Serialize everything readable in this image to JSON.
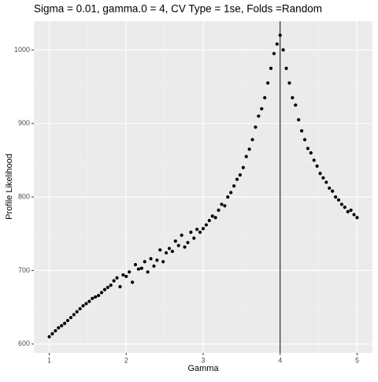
{
  "chart_data": {
    "type": "scatter",
    "title": "Sigma = 0.01, gamma.0 = 4, CV Type = 1se, Folds =Random",
    "x_label": "Gamma",
    "y_label": "Profile Likelihood",
    "xlim": [
      0.8,
      5.2
    ],
    "ylim": [
      588,
      1039
    ],
    "xticks": [
      1,
      2,
      3,
      4,
      5
    ],
    "yticks": [
      600,
      700,
      800,
      900,
      1000
    ],
    "grid": true,
    "color": "#000000",
    "vline": 4,
    "x": [
      1.0,
      1.04,
      1.08,
      1.12,
      1.16,
      1.2,
      1.24,
      1.28,
      1.32,
      1.36,
      1.4,
      1.44,
      1.48,
      1.52,
      1.56,
      1.6,
      1.64,
      1.68,
      1.72,
      1.76,
      1.8,
      1.84,
      1.88,
      1.92,
      1.96,
      2.0,
      2.04,
      2.08,
      2.12,
      2.16,
      2.2,
      2.24,
      2.28,
      2.32,
      2.36,
      2.4,
      2.44,
      2.48,
      2.52,
      2.56,
      2.6,
      2.64,
      2.68,
      2.72,
      2.76,
      2.8,
      2.84,
      2.88,
      2.92,
      2.96,
      3.0,
      3.04,
      3.08,
      3.12,
      3.16,
      3.2,
      3.24,
      3.28,
      3.32,
      3.36,
      3.4,
      3.44,
      3.48,
      3.52,
      3.56,
      3.6,
      3.64,
      3.68,
      3.72,
      3.76,
      3.8,
      3.84,
      3.88,
      3.92,
      3.96,
      4.0,
      4.04,
      4.08,
      4.12,
      4.16,
      4.2,
      4.24,
      4.28,
      4.32,
      4.36,
      4.4,
      4.44,
      4.48,
      4.52,
      4.56,
      4.6,
      4.64,
      4.68,
      4.72,
      4.76,
      4.8,
      4.84,
      4.88,
      4.92,
      4.96,
      5.0
    ],
    "values": [
      610,
      614,
      618,
      622,
      625,
      628,
      632,
      636,
      640,
      644,
      648,
      652,
      655,
      658,
      662,
      664,
      666,
      670,
      674,
      677,
      680,
      686,
      690,
      678,
      694,
      692,
      698,
      684,
      708,
      702,
      703,
      712,
      698,
      716,
      706,
      714,
      728,
      712,
      724,
      730,
      726,
      740,
      734,
      748,
      732,
      738,
      752,
      744,
      756,
      752,
      757,
      762,
      768,
      774,
      772,
      782,
      790,
      788,
      800,
      806,
      815,
      824,
      830,
      840,
      855,
      865,
      878,
      895,
      910,
      920,
      935,
      955,
      975,
      995,
      1008,
      1020,
      1000,
      975,
      955,
      935,
      925,
      905,
      890,
      878,
      866,
      860,
      850,
      842,
      832,
      826,
      820,
      812,
      808,
      800,
      796,
      790,
      786,
      780,
      782,
      776,
      772
    ]
  }
}
